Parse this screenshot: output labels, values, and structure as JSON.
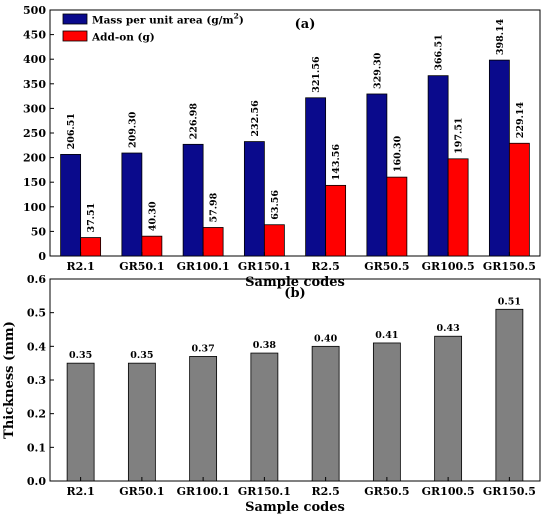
{
  "chart_data": [
    {
      "type": "bar",
      "panel_label": "(a)",
      "categories": [
        "R2.1",
        "GR50.1",
        "GR100.1",
        "GR150.1",
        "R2.5",
        "GR50.5",
        "GR100.5",
        "GR150.5"
      ],
      "series": [
        {
          "name": "Mass per unit area (g/m²)",
          "color": "#0a0a8c",
          "values": [
            206.51,
            209.3,
            226.98,
            232.56,
            321.56,
            329.3,
            366.51,
            398.14
          ],
          "labels": [
            "206.51",
            "209.30",
            "226.98",
            "232.56",
            "321.56",
            "329.30",
            "366.51",
            "398.14"
          ]
        },
        {
          "name": "Add-on (g)",
          "color": "#ff0000",
          "values": [
            37.51,
            40.3,
            57.98,
            63.56,
            143.56,
            160.3,
            197.51,
            229.14
          ],
          "labels": [
            "37.51",
            "40.30",
            "57.98",
            "63.56",
            "143.56",
            "160.30",
            "197.51",
            "229.14"
          ]
        }
      ],
      "xlabel": "Sample codes",
      "ylabel": "",
      "ylim": [
        0,
        500
      ],
      "yticks": [
        "0",
        "50",
        "100",
        "150",
        "200",
        "250",
        "300",
        "350",
        "400",
        "450",
        "500"
      ],
      "legend_position": "top-left"
    },
    {
      "type": "bar",
      "panel_label": "(b)",
      "categories": [
        "R2.1",
        "GR50.1",
        "GR100.1",
        "GR150.1",
        "R2.5",
        "GR50.5",
        "GR100.5",
        "GR150.5"
      ],
      "series": [
        {
          "color": "#808080",
          "values": [
            0.35,
            0.35,
            0.37,
            0.38,
            0.4,
            0.41,
            0.43,
            0.51
          ],
          "labels": [
            "0.35",
            "0.35",
            "0.37",
            "0.38",
            "0.40",
            "0.41",
            "0.43",
            "0.51"
          ]
        }
      ],
      "xlabel": "Sample codes",
      "ylabel": "Thickness (mm)",
      "ylim": [
        0,
        0.6
      ],
      "yticks": [
        "0.0",
        "0.1",
        "0.2",
        "0.3",
        "0.4",
        "0.5",
        "0.6"
      ]
    }
  ]
}
